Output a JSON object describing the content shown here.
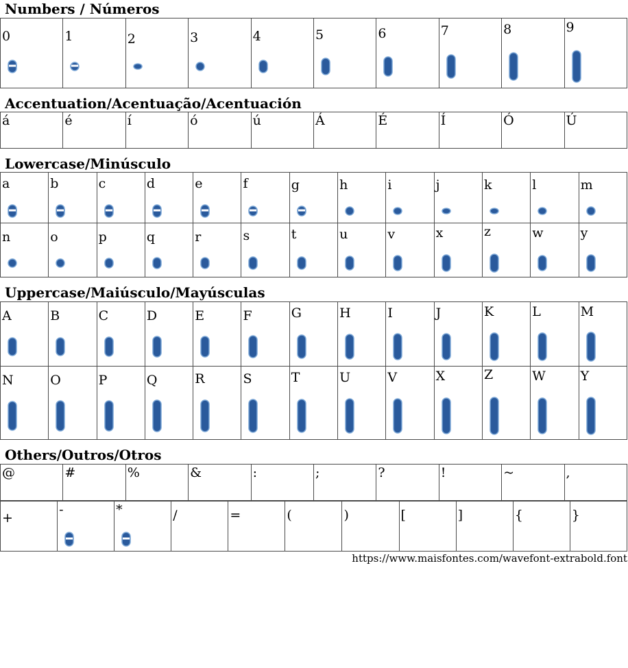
{
  "glyph_color": "#2a5a9c",
  "glyph_outline_color": "#7aa6d6",
  "sections": {
    "numbers": {
      "title": "Numbers / Números",
      "rows": [
        [
          "0",
          "1",
          "2",
          "3",
          "4",
          "5",
          "6",
          "7",
          "8",
          "9"
        ]
      ]
    },
    "accents": {
      "title": "Accentuation/Acentuação/Acentuación",
      "rows": [
        [
          "á",
          "é",
          "í",
          "ó",
          "ú",
          "Á",
          "É",
          "Í",
          "Ó",
          "Ú"
        ]
      ]
    },
    "lowercase": {
      "title": "Lowercase/Minúsculo",
      "rows": [
        [
          "a",
          "b",
          "c",
          "d",
          "e",
          "f",
          "g",
          "h",
          "i",
          "j",
          "k",
          "l",
          "m"
        ],
        [
          "n",
          "o",
          "p",
          "q",
          "r",
          "s",
          "t",
          "u",
          "v",
          "x",
          "z",
          "w",
          "y"
        ]
      ]
    },
    "uppercase": {
      "title": "Uppercase/Maiúsculo/Mayúsculas",
      "rows": [
        [
          "A",
          "B",
          "C",
          "D",
          "E",
          "F",
          "G",
          "H",
          "I",
          "J",
          "K",
          "L",
          "M"
        ],
        [
          "N",
          "O",
          "P",
          "Q",
          "R",
          "S",
          "T",
          "U",
          "V",
          "X",
          "Z",
          "W",
          "Y"
        ]
      ]
    },
    "others": {
      "title": "Others/Outros/Otros",
      "rows": [
        [
          "@",
          "#",
          "%",
          "&",
          ":",
          ";",
          "?",
          "!",
          "~",
          ","
        ],
        [
          "+",
          "-",
          "*",
          "/",
          "=",
          "(",
          ")",
          "[",
          "]",
          "{",
          "}"
        ]
      ]
    }
  },
  "source_url": "https://www.maisfontes.com/wavefont-extrabold.font"
}
